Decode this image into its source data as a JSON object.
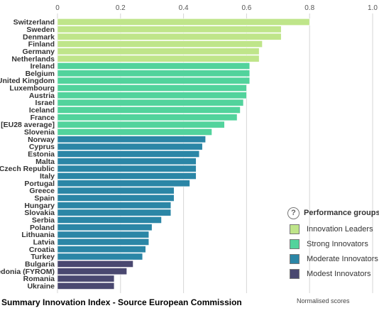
{
  "chart_data": {
    "type": "bar",
    "orientation": "horizontal",
    "xlim": [
      0,
      1.0
    ],
    "ticks": [
      "0",
      "0.2",
      "0.4",
      "0.6",
      "0.8",
      "1.0"
    ],
    "xlabel": "Normalised scores",
    "grid": true,
    "categories": [
      "Switzerland",
      "Sweden",
      "Denmark",
      "Finland",
      "Germany",
      "Netherlands",
      "Ireland",
      "Belgium",
      "United Kingdom",
      "Luxembourg",
      "Austria",
      "Israel",
      "Iceland",
      "France",
      "[EU28 average]",
      "Slovenia",
      "Norway",
      "Cyprus",
      "Estonia",
      "Malta",
      "Czech Republic",
      "Italy",
      "Portugal",
      "Greece",
      "Spain",
      "Hungary",
      "Slovakia",
      "Serbia",
      "Poland",
      "Lithuania",
      "Latvia",
      "Croatia",
      "Turkey",
      "Bulgaria",
      "Macedonia (FYROM)",
      "Romania",
      "Ukraine"
    ],
    "values": [
      0.8,
      0.71,
      0.71,
      0.65,
      0.64,
      0.64,
      0.61,
      0.61,
      0.61,
      0.6,
      0.6,
      0.59,
      0.58,
      0.57,
      0.53,
      0.49,
      0.47,
      0.46,
      0.45,
      0.44,
      0.44,
      0.44,
      0.42,
      0.37,
      0.37,
      0.36,
      0.36,
      0.33,
      0.3,
      0.29,
      0.29,
      0.28,
      0.27,
      0.24,
      0.22,
      0.18,
      0.18
    ],
    "groups": [
      0,
      0,
      0,
      0,
      0,
      0,
      1,
      1,
      1,
      1,
      1,
      1,
      1,
      1,
      1,
      1,
      2,
      2,
      2,
      2,
      2,
      2,
      2,
      2,
      2,
      2,
      2,
      2,
      2,
      2,
      2,
      2,
      2,
      3,
      3,
      3,
      3
    ],
    "legend": {
      "title": "Performance groups",
      "placement": "bottom-right",
      "items": [
        {
          "label": "Innovation Leaders",
          "color": "#bfe58a"
        },
        {
          "label": "Strong Innovators",
          "color": "#52d39c"
        },
        {
          "label": "Moderate Innovators",
          "color": "#2b86a6"
        },
        {
          "label": "Modest Innovators",
          "color": "#4a4870"
        }
      ]
    }
  },
  "caption": "Summary Innovation Index - Source European Commission"
}
